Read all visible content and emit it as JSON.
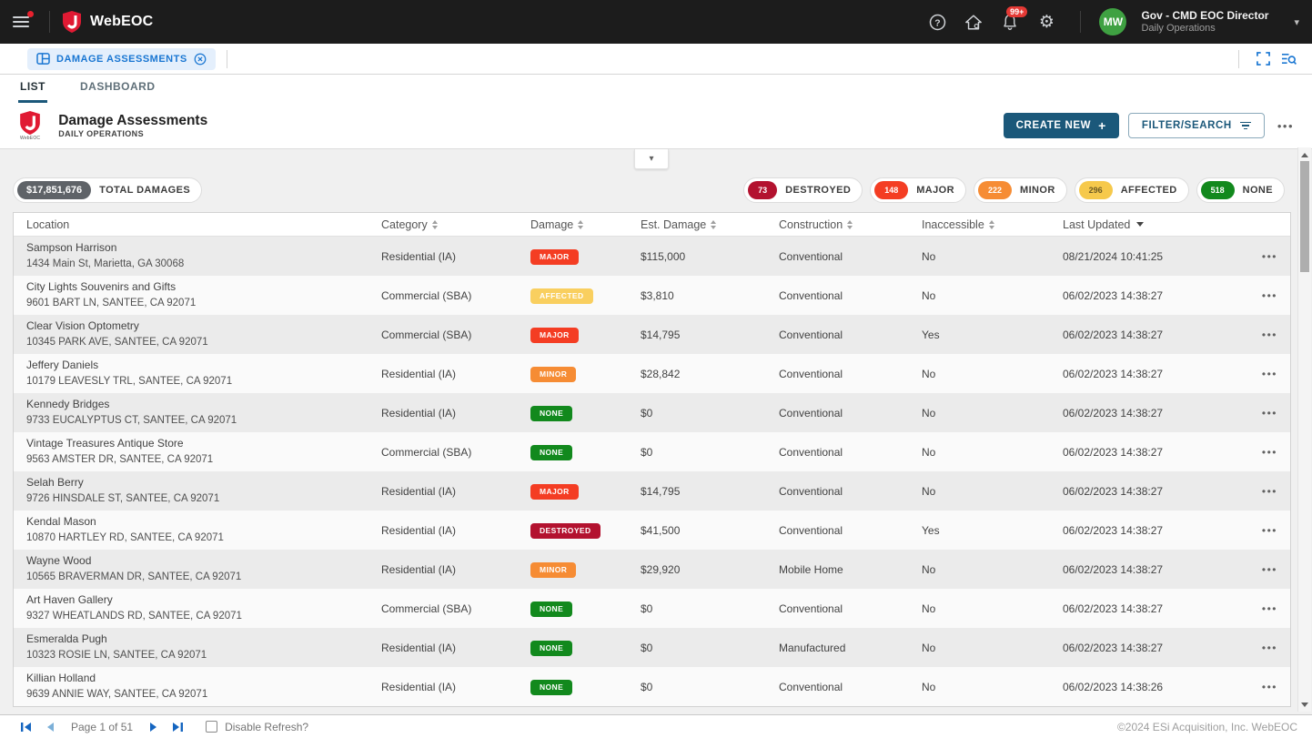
{
  "topbar": {
    "brand": "WebEOC",
    "notification_count": "99+",
    "user": {
      "initials": "MW",
      "name": "Gov - CMD EOC Director",
      "role": "Daily Operations"
    }
  },
  "board_tab": {
    "label": "DAMAGE ASSESSMENTS"
  },
  "view_tabs": [
    {
      "id": "list",
      "label": "LIST",
      "active": true
    },
    {
      "id": "dashboard",
      "label": "DASHBOARD",
      "active": false
    }
  ],
  "page": {
    "title": "Damage Assessments",
    "subtitle": "DAILY OPERATIONS",
    "logo_caption": "WebEOC"
  },
  "toolbar": {
    "create_label": "CREATE NEW",
    "filter_label": "FILTER/SEARCH"
  },
  "summary": {
    "total": {
      "value": "$17,851,676",
      "label": "TOTAL DAMAGES",
      "value_bg": "#5f6368",
      "value_color": "#ffffff"
    },
    "counts": [
      {
        "value": "73",
        "label": "DESTROYED",
        "bg": "#b3122f",
        "color": "#ffffff"
      },
      {
        "value": "148",
        "label": "MAJOR",
        "bg": "#f43d23",
        "color": "#ffffff"
      },
      {
        "value": "222",
        "label": "MINOR",
        "bg": "#f68c34",
        "color": "#ffffff"
      },
      {
        "value": "296",
        "label": "AFFECTED",
        "bg": "#f6c94c",
        "color": "#6d5b25"
      },
      {
        "value": "518",
        "label": "NONE",
        "bg": "#12891d",
        "color": "#ffffff"
      }
    ]
  },
  "damage_colors": {
    "DESTROYED": "#b3122f",
    "MAJOR": "#f43d23",
    "MINOR": "#f68c34",
    "AFFECTED": "#f9cf5f",
    "NONE": "#12891d"
  },
  "table": {
    "columns": [
      {
        "label": "Location",
        "sortable": false
      },
      {
        "label": "Category",
        "sortable": true
      },
      {
        "label": "Damage",
        "sortable": true
      },
      {
        "label": "Est. Damage",
        "sortable": true
      },
      {
        "label": "Construction",
        "sortable": true
      },
      {
        "label": "Inaccessible",
        "sortable": true
      },
      {
        "label": "Last Updated",
        "sortable": true,
        "sorted": "desc"
      },
      {
        "label": "",
        "sortable": false
      }
    ],
    "rows": [
      {
        "name": "Sampson Harrison",
        "address": "1434 Main St, Marietta, GA 30068",
        "category": "Residential (IA)",
        "damage": "MAJOR",
        "est_damage": "$115,000",
        "construction": "Conventional",
        "inaccessible": "No",
        "last_updated": "08/21/2024 10:41:25"
      },
      {
        "name": "City Lights Souvenirs and Gifts",
        "address": "9601 BART LN, SANTEE, CA 92071",
        "category": "Commercial (SBA)",
        "damage": "AFFECTED",
        "est_damage": "$3,810",
        "construction": "Conventional",
        "inaccessible": "No",
        "last_updated": "06/02/2023 14:38:27"
      },
      {
        "name": "Clear Vision Optometry",
        "address": "10345 PARK AVE, SANTEE, CA 92071",
        "category": "Commercial (SBA)",
        "damage": "MAJOR",
        "est_damage": "$14,795",
        "construction": "Conventional",
        "inaccessible": "Yes",
        "last_updated": "06/02/2023 14:38:27"
      },
      {
        "name": "Jeffery Daniels",
        "address": "10179 LEAVESLY TRL, SANTEE, CA 92071",
        "category": "Residential (IA)",
        "damage": "MINOR",
        "est_damage": "$28,842",
        "construction": "Conventional",
        "inaccessible": "No",
        "last_updated": "06/02/2023 14:38:27"
      },
      {
        "name": "Kennedy Bridges",
        "address": "9733 EUCALYPTUS CT, SANTEE, CA 92071",
        "category": "Residential (IA)",
        "damage": "NONE",
        "est_damage": "$0",
        "construction": "Conventional",
        "inaccessible": "No",
        "last_updated": "06/02/2023 14:38:27"
      },
      {
        "name": "Vintage Treasures Antique Store",
        "address": "9563 AMSTER DR, SANTEE, CA 92071",
        "category": "Commercial (SBA)",
        "damage": "NONE",
        "est_damage": "$0",
        "construction": "Conventional",
        "inaccessible": "No",
        "last_updated": "06/02/2023 14:38:27"
      },
      {
        "name": "Selah Berry",
        "address": "9726 HINSDALE ST, SANTEE, CA 92071",
        "category": "Residential (IA)",
        "damage": "MAJOR",
        "est_damage": "$14,795",
        "construction": "Conventional",
        "inaccessible": "No",
        "last_updated": "06/02/2023 14:38:27"
      },
      {
        "name": "Kendal Mason",
        "address": "10870 HARTLEY RD, SANTEE, CA 92071",
        "category": "Residential (IA)",
        "damage": "DESTROYED",
        "est_damage": "$41,500",
        "construction": "Conventional",
        "inaccessible": "Yes",
        "last_updated": "06/02/2023 14:38:27"
      },
      {
        "name": "Wayne Wood",
        "address": "10565 BRAVERMAN DR, SANTEE, CA 92071",
        "category": "Residential (IA)",
        "damage": "MINOR",
        "est_damage": "$29,920",
        "construction": "Mobile Home",
        "inaccessible": "No",
        "last_updated": "06/02/2023 14:38:27"
      },
      {
        "name": "Art Haven Gallery",
        "address": "9327 WHEATLANDS RD, SANTEE, CA 92071",
        "category": "Commercial (SBA)",
        "damage": "NONE",
        "est_damage": "$0",
        "construction": "Conventional",
        "inaccessible": "No",
        "last_updated": "06/02/2023 14:38:27"
      },
      {
        "name": "Esmeralda Pugh",
        "address": "10323 ROSIE LN, SANTEE, CA 92071",
        "category": "Residential (IA)",
        "damage": "NONE",
        "est_damage": "$0",
        "construction": "Manufactured",
        "inaccessible": "No",
        "last_updated": "06/02/2023 14:38:27"
      },
      {
        "name": "Killian Holland",
        "address": "9639 ANNIE WAY, SANTEE, CA 92071",
        "category": "Residential (IA)",
        "damage": "NONE",
        "est_damage": "$0",
        "construction": "Conventional",
        "inaccessible": "No",
        "last_updated": "06/02/2023 14:38:26"
      }
    ]
  },
  "footer": {
    "page_text": "Page 1 of 51",
    "disable_refresh_label": "Disable Refresh?",
    "copyright": "©2024 ESi Acquisition, Inc. WebEOC"
  },
  "icons": {
    "more_horizontal": "•••",
    "collapse_chevron": "▾",
    "user_chevron": "▾",
    "settings_gear": "⚙",
    "help": "?"
  },
  "colors": {
    "accent_blue": "#1976d2",
    "brand_red": "#e01a33",
    "action_teal": "#1b587a"
  }
}
